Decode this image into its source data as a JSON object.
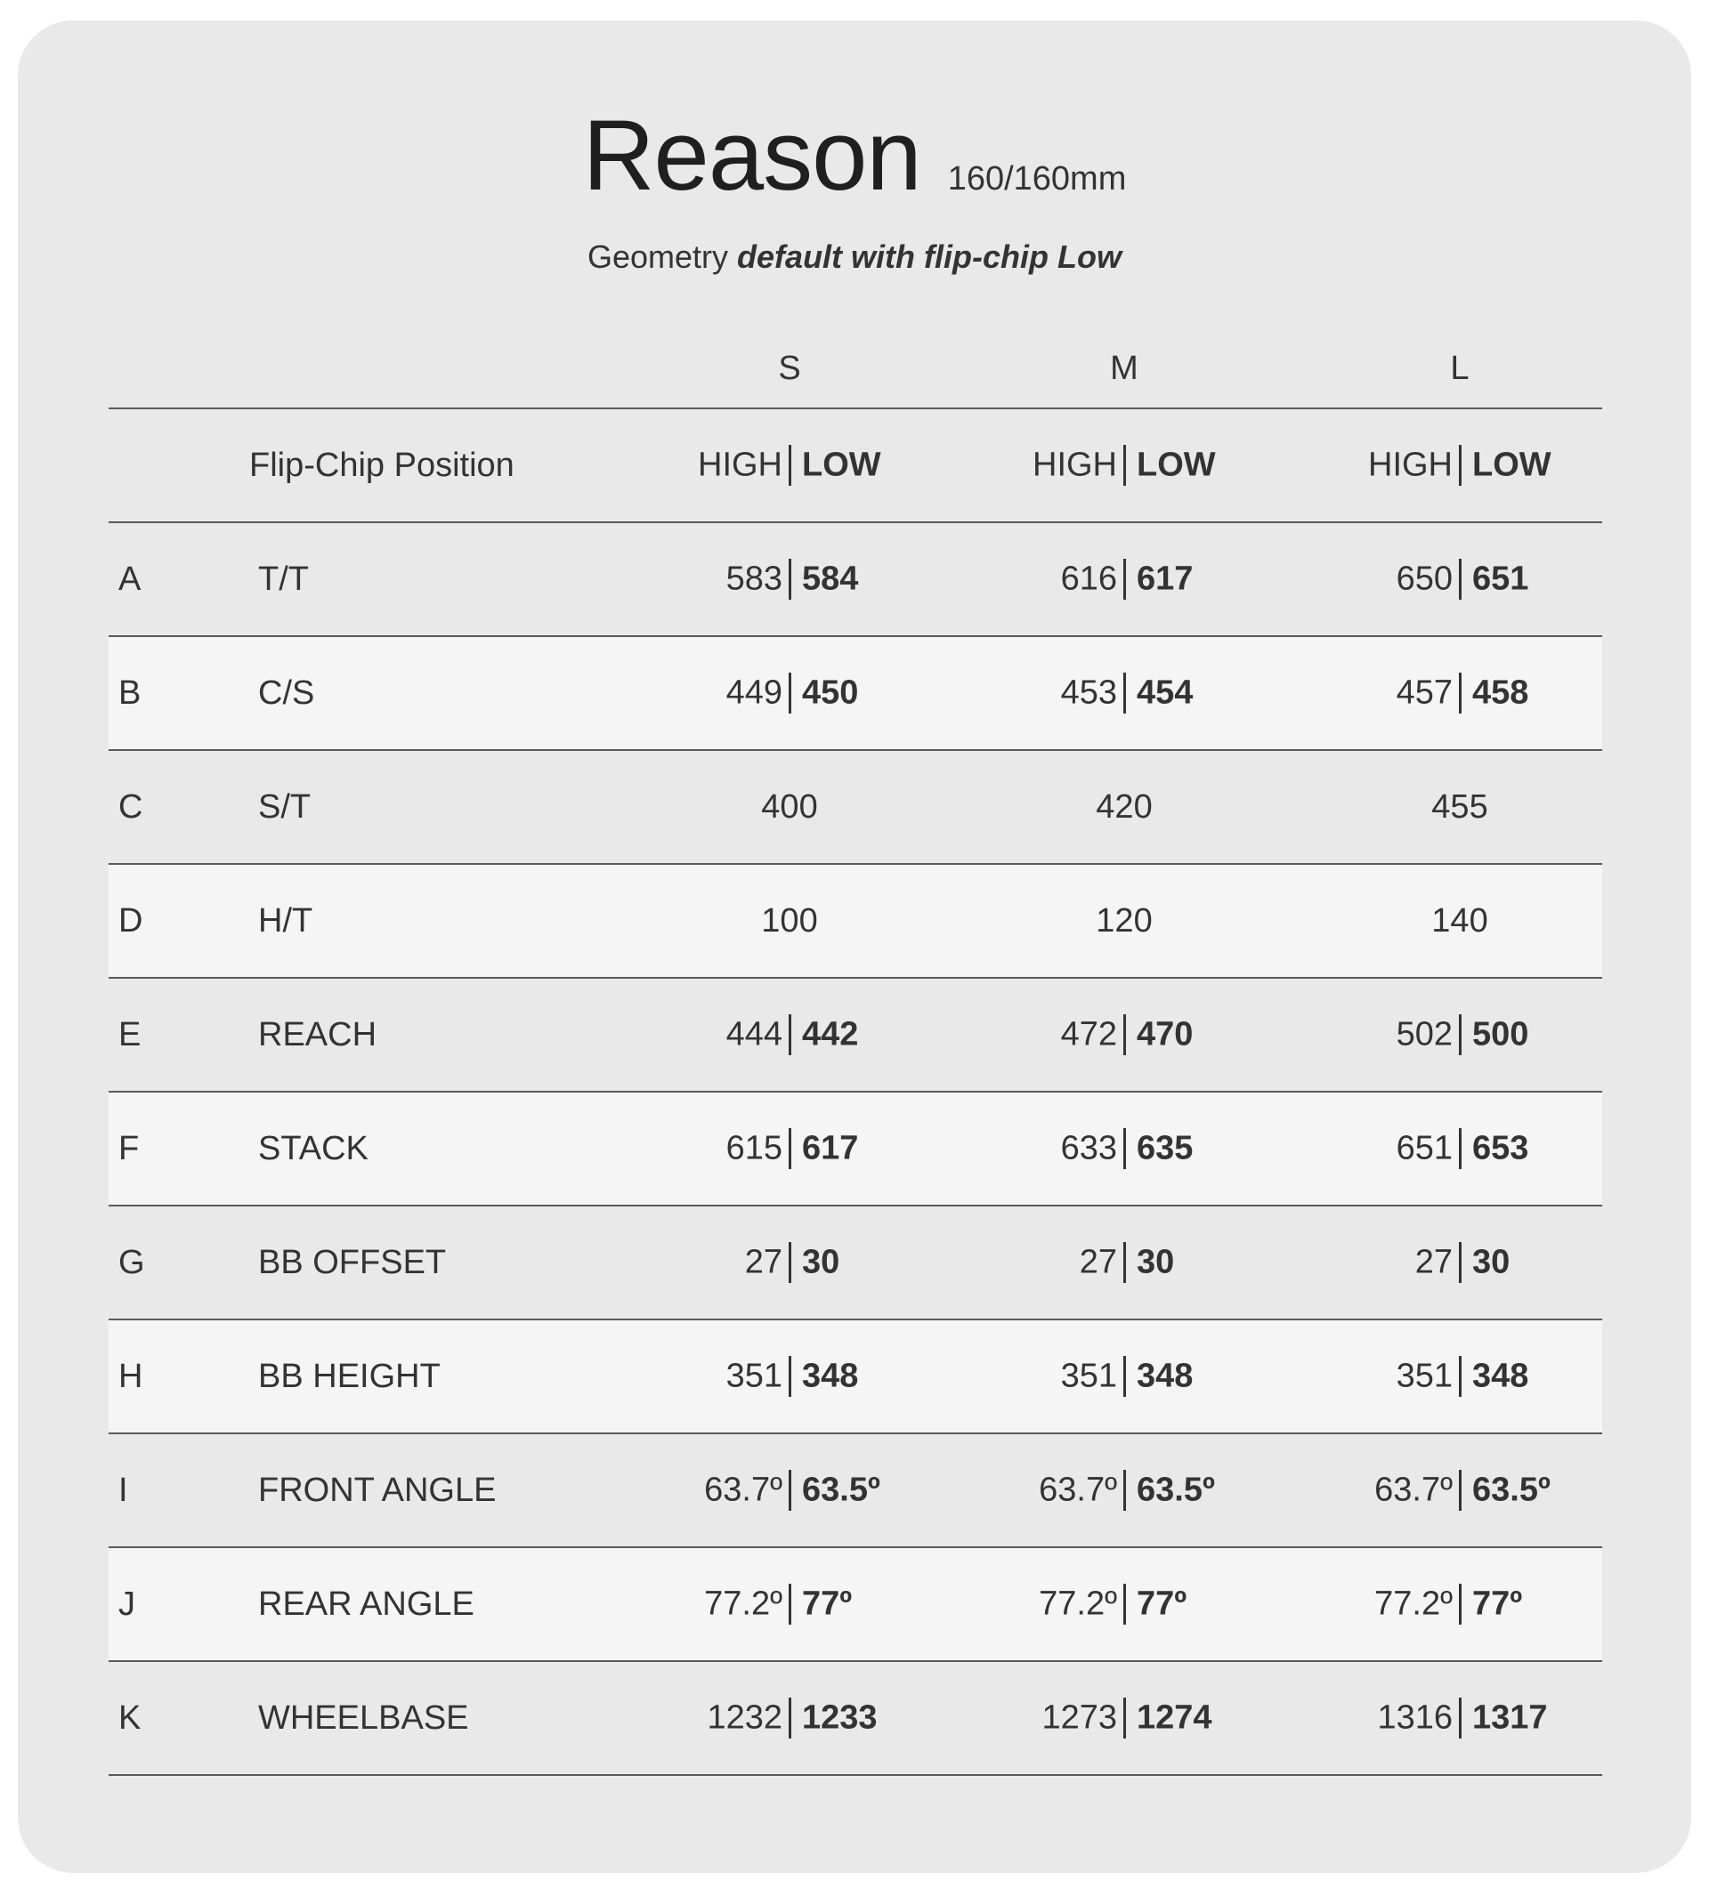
{
  "title": "Reason",
  "travel": "160/160mm",
  "subtitle": {
    "prefix": "Geometry",
    "emphasis": "default with flip-chip Low"
  },
  "sizes": [
    "S",
    "M",
    "L"
  ],
  "flip_chip": {
    "label": "Flip-Chip Position",
    "high": "HIGH",
    "low": "LOW"
  },
  "rows": [
    {
      "letter": "A",
      "label": "T/T",
      "values": [
        {
          "high": "583",
          "low": "584"
        },
        {
          "high": "616",
          "low": "617"
        },
        {
          "high": "650",
          "low": "651"
        }
      ]
    },
    {
      "letter": "B",
      "label": "C/S",
      "values": [
        {
          "high": "449",
          "low": "450"
        },
        {
          "high": "453",
          "low": "454"
        },
        {
          "high": "457",
          "low": "458"
        }
      ]
    },
    {
      "letter": "C",
      "label": "S/T",
      "values": [
        {
          "value": "400"
        },
        {
          "value": "420"
        },
        {
          "value": "455"
        }
      ]
    },
    {
      "letter": "D",
      "label": "H/T",
      "values": [
        {
          "value": "100"
        },
        {
          "value": "120"
        },
        {
          "value": "140"
        }
      ]
    },
    {
      "letter": "E",
      "label": "REACH",
      "values": [
        {
          "high": "444",
          "low": "442"
        },
        {
          "high": "472",
          "low": "470"
        },
        {
          "high": "502",
          "low": "500"
        }
      ]
    },
    {
      "letter": "F",
      "label": "STACK",
      "values": [
        {
          "high": "615",
          "low": "617"
        },
        {
          "high": "633",
          "low": "635"
        },
        {
          "high": "651",
          "low": "653"
        }
      ]
    },
    {
      "letter": "G",
      "label": "BB OFFSET",
      "values": [
        {
          "high": "27",
          "low": "30"
        },
        {
          "high": "27",
          "low": "30"
        },
        {
          "high": "27",
          "low": "30"
        }
      ]
    },
    {
      "letter": "H",
      "label": "BB HEIGHT",
      "values": [
        {
          "high": "351",
          "low": "348"
        },
        {
          "high": "351",
          "low": "348"
        },
        {
          "high": "351",
          "low": "348"
        }
      ]
    },
    {
      "letter": "I",
      "label": "FRONT ANGLE",
      "values": [
        {
          "high": "63.7º",
          "low": "63.5º"
        },
        {
          "high": "63.7º",
          "low": "63.5º"
        },
        {
          "high": "63.7º",
          "low": "63.5º"
        }
      ]
    },
    {
      "letter": "J",
      "label": "REAR ANGLE",
      "values": [
        {
          "high": "77.2º",
          "low": "77º"
        },
        {
          "high": "77.2º",
          "low": "77º"
        },
        {
          "high": "77.2º",
          "low": "77º"
        }
      ]
    },
    {
      "letter": "K",
      "label": "WHEELBASE",
      "values": [
        {
          "high": "1232",
          "low": "1233"
        },
        {
          "high": "1273",
          "low": "1274"
        },
        {
          "high": "1316",
          "low": "1317"
        }
      ]
    }
  ],
  "colors": {
    "card": "#e9e9e9",
    "alt_row": "#f5f5f5",
    "text": "#333333",
    "rule": "#5a5a5a"
  }
}
